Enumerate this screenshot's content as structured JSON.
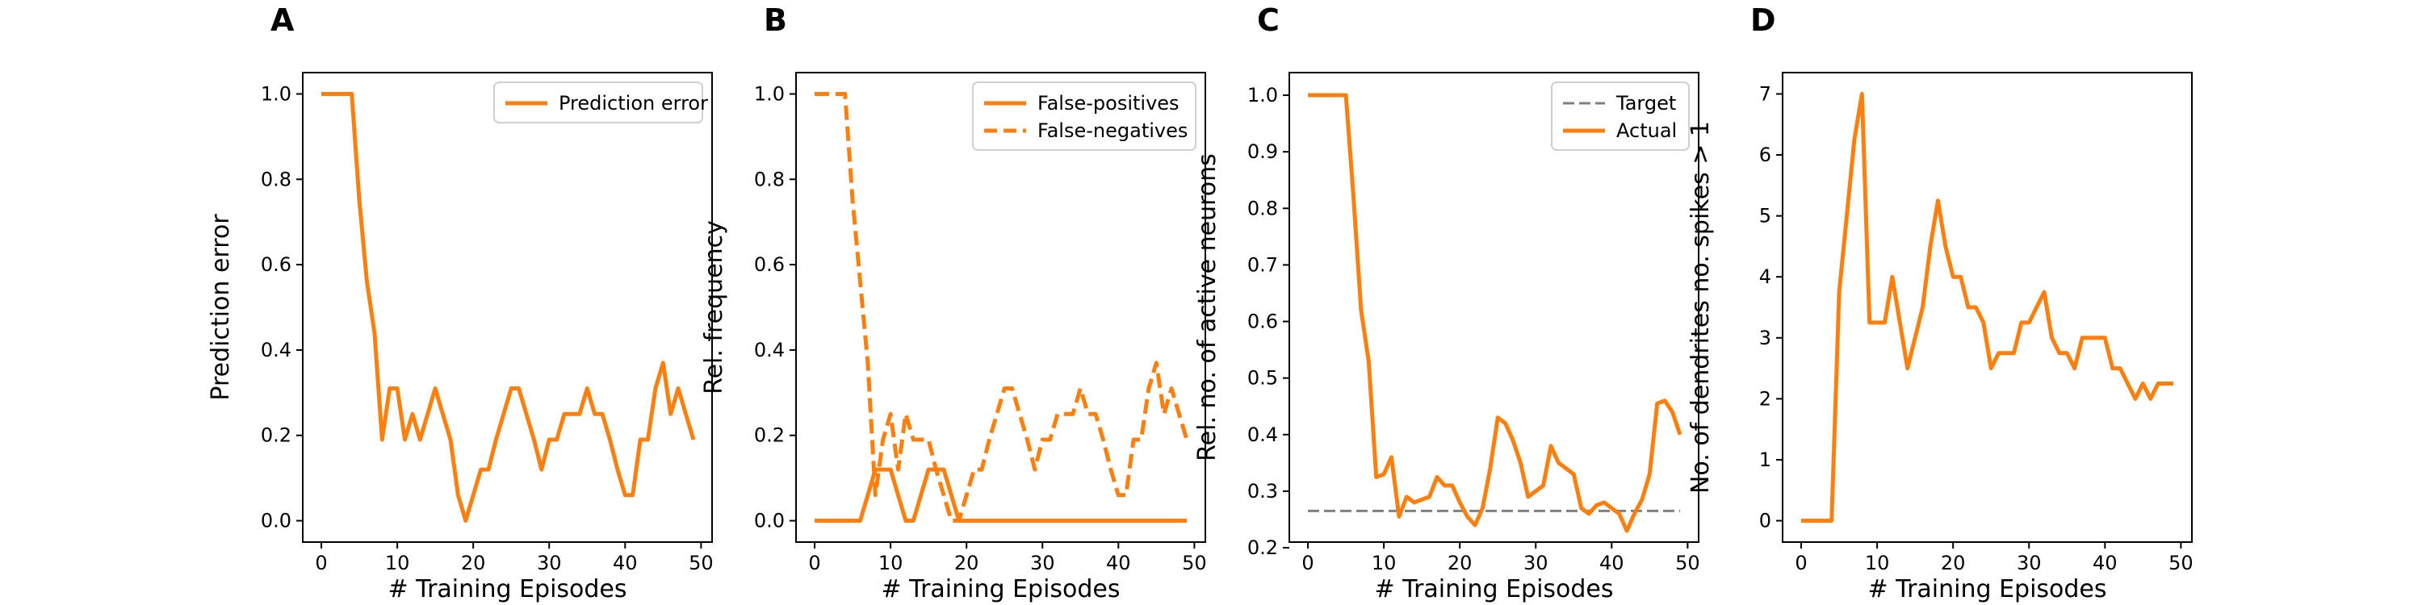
{
  "colors": {
    "orange": "#ff7f0e",
    "target": "#808080"
  },
  "chart_data": [
    {
      "panel": "A",
      "type": "line",
      "xlabel": "# Training Episodes",
      "ylabel": "Prediction error",
      "xlim": [
        -2.45,
        51.45
      ],
      "ylim": [
        -0.05,
        1.05
      ],
      "xticks": [
        0,
        10,
        20,
        30,
        40,
        50
      ],
      "yticks": [
        0.0,
        0.2,
        0.4,
        0.6,
        0.8,
        1.0
      ],
      "ytick_labels": [
        "0.0",
        "0.2",
        "0.4",
        "0.6",
        "0.8",
        "1.0"
      ],
      "legend_position": "upper-right",
      "series": [
        {
          "name": "Prediction error",
          "style": "solid",
          "x": [
            0,
            1,
            2,
            3,
            4,
            5,
            6,
            7,
            8,
            9,
            10,
            11,
            12,
            13,
            14,
            15,
            16,
            17,
            18,
            19,
            20,
            21,
            22,
            23,
            24,
            25,
            26,
            27,
            28,
            29,
            30,
            31,
            32,
            33,
            34,
            35,
            36,
            37,
            38,
            39,
            40,
            41,
            42,
            43,
            44,
            45,
            46,
            47,
            48,
            49
          ],
          "y": [
            1.0,
            1.0,
            1.0,
            1.0,
            1.0,
            0.75,
            0.56,
            0.44,
            0.19,
            0.31,
            0.31,
            0.19,
            0.25,
            0.19,
            0.25,
            0.31,
            0.25,
            0.19,
            0.06,
            0.0,
            0.06,
            0.12,
            0.12,
            0.19,
            0.25,
            0.31,
            0.31,
            0.25,
            0.19,
            0.12,
            0.19,
            0.19,
            0.25,
            0.25,
            0.25,
            0.31,
            0.25,
            0.25,
            0.19,
            0.12,
            0.06,
            0.06,
            0.19,
            0.19,
            0.31,
            0.37,
            0.25,
            0.31,
            0.25,
            0.19
          ]
        }
      ]
    },
    {
      "panel": "B",
      "type": "line",
      "xlabel": "# Training Episodes",
      "ylabel": "Rel. frequency",
      "xlim": [
        -2.45,
        51.45
      ],
      "ylim": [
        -0.05,
        1.05
      ],
      "xticks": [
        0,
        10,
        20,
        30,
        40,
        50
      ],
      "yticks": [
        0.0,
        0.2,
        0.4,
        0.6,
        0.8,
        1.0
      ],
      "ytick_labels": [
        "0.0",
        "0.2",
        "0.4",
        "0.6",
        "0.8",
        "1.0"
      ],
      "legend_position": "upper-right",
      "series": [
        {
          "name": "False-positives",
          "style": "solid",
          "x": [
            0,
            1,
            2,
            3,
            4,
            5,
            6,
            7,
            8,
            9,
            10,
            11,
            12,
            13,
            14,
            15,
            16,
            17,
            18,
            19,
            20,
            21,
            22,
            23,
            24,
            25,
            26,
            27,
            28,
            29,
            30,
            31,
            32,
            33,
            34,
            35,
            36,
            37,
            38,
            39,
            40,
            41,
            42,
            43,
            44,
            45,
            46,
            47,
            48,
            49
          ],
          "y": [
            0,
            0,
            0,
            0,
            0,
            0,
            0,
            0.06,
            0.12,
            0.12,
            0.12,
            0.06,
            0,
            0,
            0.06,
            0.12,
            0.12,
            0.12,
            0.06,
            0,
            0,
            0,
            0,
            0,
            0,
            0,
            0,
            0,
            0,
            0,
            0,
            0,
            0,
            0,
            0,
            0,
            0,
            0,
            0,
            0,
            0,
            0,
            0,
            0,
            0,
            0,
            0,
            0,
            0,
            0
          ]
        },
        {
          "name": "False-negatives",
          "style": "dashed",
          "x": [
            0,
            1,
            2,
            3,
            4,
            5,
            6,
            7,
            8,
            9,
            10,
            11,
            12,
            13,
            14,
            15,
            16,
            17,
            18,
            19,
            20,
            21,
            22,
            23,
            24,
            25,
            26,
            27,
            28,
            29,
            30,
            31,
            32,
            33,
            34,
            35,
            36,
            37,
            38,
            39,
            40,
            41,
            42,
            43,
            44,
            45,
            46,
            47,
            48,
            49
          ],
          "y": [
            1.0,
            1.0,
            1.0,
            1.0,
            1.0,
            0.75,
            0.56,
            0.37,
            0.06,
            0.19,
            0.25,
            0.12,
            0.25,
            0.19,
            0.19,
            0.19,
            0.12,
            0.06,
            0.0,
            0.0,
            0.06,
            0.12,
            0.12,
            0.19,
            0.25,
            0.31,
            0.31,
            0.25,
            0.19,
            0.12,
            0.19,
            0.19,
            0.25,
            0.25,
            0.25,
            0.31,
            0.25,
            0.25,
            0.19,
            0.12,
            0.06,
            0.06,
            0.19,
            0.19,
            0.31,
            0.37,
            0.25,
            0.31,
            0.25,
            0.19
          ]
        }
      ]
    },
    {
      "panel": "C",
      "type": "line",
      "xlabel": "# Training Episodes",
      "ylabel": "Rel. no. of active neurons",
      "xlim": [
        -2.45,
        51.45
      ],
      "ylim": [
        0.21,
        1.04
      ],
      "xticks": [
        0,
        10,
        20,
        30,
        40,
        50
      ],
      "yticks": [
        0.2,
        0.3,
        0.4,
        0.5,
        0.6,
        0.7,
        0.8,
        0.9,
        1.0
      ],
      "ytick_labels": [
        "0.2",
        "0.3",
        "0.4",
        "0.5",
        "0.6",
        "0.7",
        "0.8",
        "0.9",
        "1.0"
      ],
      "legend_position": "upper-right",
      "series": [
        {
          "name": "Target",
          "style": "dashed-gray",
          "x": [
            0,
            49
          ],
          "y": [
            0.265,
            0.265
          ]
        },
        {
          "name": "Actual",
          "style": "solid",
          "x": [
            0,
            1,
            2,
            3,
            4,
            5,
            6,
            7,
            8,
            9,
            10,
            11,
            12,
            13,
            14,
            15,
            16,
            17,
            18,
            19,
            20,
            21,
            22,
            23,
            24,
            25,
            26,
            27,
            28,
            29,
            30,
            31,
            32,
            33,
            34,
            35,
            36,
            37,
            38,
            39,
            40,
            41,
            42,
            43,
            44,
            45,
            46,
            47,
            48,
            49
          ],
          "y": [
            1.0,
            1.0,
            1.0,
            1.0,
            1.0,
            1.0,
            0.82,
            0.62,
            0.53,
            0.325,
            0.33,
            0.36,
            0.255,
            0.29,
            0.28,
            0.285,
            0.29,
            0.325,
            0.31,
            0.31,
            0.28,
            0.255,
            0.24,
            0.27,
            0.34,
            0.43,
            0.42,
            0.39,
            0.35,
            0.29,
            0.3,
            0.31,
            0.38,
            0.35,
            0.34,
            0.33,
            0.27,
            0.26,
            0.275,
            0.28,
            0.27,
            0.26,
            0.23,
            0.26,
            0.285,
            0.33,
            0.455,
            0.46,
            0.44,
            0.4
          ]
        }
      ]
    },
    {
      "panel": "D",
      "type": "line",
      "xlabel": "# Training Episodes",
      "ylabel": "No. of dendrites no. spikes > 1",
      "xlim": [
        -2.45,
        51.45
      ],
      "ylim": [
        -0.35,
        7.35
      ],
      "xticks": [
        0,
        10,
        20,
        30,
        40,
        50
      ],
      "yticks": [
        0,
        1,
        2,
        3,
        4,
        5,
        6,
        7
      ],
      "ytick_labels": [
        "0",
        "1",
        "2",
        "3",
        "4",
        "5",
        "6",
        "7"
      ],
      "legend_position": "",
      "series": [
        {
          "name": "",
          "style": "solid",
          "x": [
            0,
            1,
            2,
            3,
            4,
            5,
            6,
            7,
            8,
            9,
            10,
            11,
            12,
            13,
            14,
            15,
            16,
            17,
            18,
            19,
            20,
            21,
            22,
            23,
            24,
            25,
            26,
            27,
            28,
            29,
            30,
            31,
            32,
            33,
            34,
            35,
            36,
            37,
            38,
            39,
            40,
            41,
            42,
            43,
            44,
            45,
            46,
            47,
            48,
            49
          ],
          "y": [
            0,
            0,
            0,
            0,
            0,
            3.75,
            5,
            6.25,
            7,
            3.25,
            3.25,
            3.25,
            4,
            3.25,
            2.5,
            3,
            3.5,
            4.5,
            5.25,
            4.5,
            4,
            4,
            3.5,
            3.5,
            3.25,
            2.5,
            2.75,
            2.75,
            2.75,
            3.25,
            3.25,
            3.5,
            3.75,
            3,
            2.75,
            2.75,
            2.5,
            3,
            3,
            3,
            3,
            2.5,
            2.5,
            2.25,
            2,
            2.25,
            2,
            2.25,
            2.25,
            2.25
          ]
        }
      ]
    }
  ]
}
